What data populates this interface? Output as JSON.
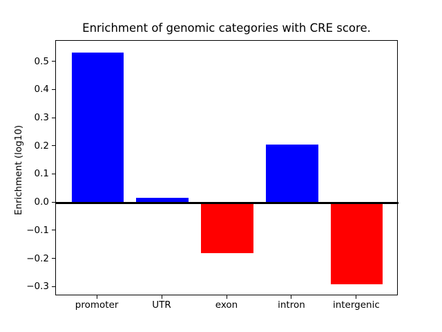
{
  "chart_data": {
    "type": "bar",
    "title": "Enrichment of genomic categories with CRE score.",
    "xlabel": "",
    "ylabel": "Enrichment (log10)",
    "categories": [
      "promoter",
      "UTR",
      "exon",
      "intron",
      "intergenic"
    ],
    "values": [
      0.534,
      0.018,
      -0.178,
      0.207,
      -0.289
    ],
    "bar_colors": [
      "#0000ff",
      "#0000ff",
      "#ff0000",
      "#0000ff",
      "#ff0000"
    ],
    "positive_color": "#0000ff",
    "negative_color": "#ff0000",
    "bar_width": 0.8,
    "ylim": [
      -0.331,
      0.575
    ],
    "yticks": [
      -0.3,
      -0.2,
      -0.1,
      0.0,
      0.1,
      0.2,
      0.3,
      0.4,
      0.5
    ],
    "grid": false,
    "legend": null,
    "zero_line": true,
    "background_color": "#ffffff",
    "spine_color": "#000000"
  }
}
